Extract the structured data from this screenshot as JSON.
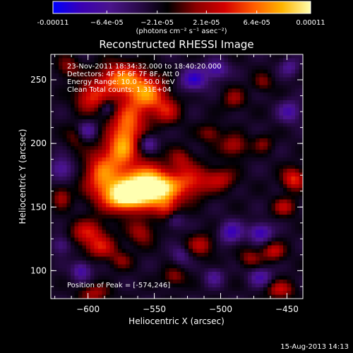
{
  "chart_data": {
    "type": "heatmap",
    "title": "Reconstructed RHESSI Image",
    "xlabel": "Heliocentric X (arcsec)",
    "ylabel": "Heliocentric Y (arcsec)",
    "xlim": [
      -628,
      -438
    ],
    "ylim": [
      78,
      270
    ],
    "x_ticks": [
      -600,
      -550,
      -500,
      -450
    ],
    "y_ticks": [
      100,
      150,
      200,
      250
    ],
    "colorbar": {
      "range": [
        -0.00011,
        0.00011
      ],
      "tick_values": [
        -0.00011,
        -6.4e-05,
        -2.1e-05,
        2.1e-05,
        6.4e-05,
        0.00011
      ],
      "tick_labels": [
        "-0.00011",
        "−6.4e-05",
        "−2.1e-05",
        "2.1e-05",
        "6.4e-05",
        "0.00011"
      ],
      "units": "(photons cm⁻² s⁻¹ asec⁻²)",
      "colormap": [
        "#0000ff",
        "#3a00b4",
        "#4a148c",
        "#2a0a4a",
        "#000000",
        "#8b0000",
        "#d40000",
        "#ff5a00",
        "#ffb400",
        "#ffffb0"
      ]
    },
    "annotations": [
      "23-Nov-2011 18:34:32.000 to 18:40:20.000",
      "Detectors: 4F 5F 6F 7F 8F, Att 0",
      "Energy Range: 10.0 - 50.0 keV",
      "Clean    Total counts: 1.31E+04"
    ],
    "peak_label": "Position of Peak = [-574,246]",
    "peak": [
      -574,
      246
    ],
    "sources": [
      {
        "x": -573,
        "y": 158,
        "sx": 10,
        "sy": 8,
        "a": 1.0
      },
      {
        "x": -560,
        "y": 168,
        "sx": 14,
        "sy": 12,
        "a": 0.9
      },
      {
        "x": -547,
        "y": 164,
        "sx": 12,
        "sy": 9,
        "a": 0.85
      },
      {
        "x": -590,
        "y": 175,
        "sx": 9,
        "sy": 14,
        "a": 0.75
      },
      {
        "x": -575,
        "y": 195,
        "sx": 8,
        "sy": 10,
        "a": 0.7
      },
      {
        "x": -570,
        "y": 215,
        "sx": 9,
        "sy": 12,
        "a": 0.75
      },
      {
        "x": -555,
        "y": 238,
        "sx": 10,
        "sy": 10,
        "a": 0.8
      },
      {
        "x": -575,
        "y": 250,
        "sx": 12,
        "sy": 9,
        "a": 0.85
      },
      {
        "x": -598,
        "y": 236,
        "sx": 8,
        "sy": 8,
        "a": 0.6
      },
      {
        "x": -540,
        "y": 225,
        "sx": 7,
        "sy": 7,
        "a": 0.45
      },
      {
        "x": -522,
        "y": 170,
        "sx": 10,
        "sy": 9,
        "a": 0.55
      },
      {
        "x": -530,
        "y": 188,
        "sx": 6,
        "sy": 6,
        "a": 0.35
      },
      {
        "x": -500,
        "y": 172,
        "sx": 8,
        "sy": 6,
        "a": 0.45
      },
      {
        "x": -490,
        "y": 198,
        "sx": 7,
        "sy": 6,
        "a": 0.45
      },
      {
        "x": -508,
        "y": 208,
        "sx": 6,
        "sy": 5,
        "a": 0.35
      },
      {
        "x": -445,
        "y": 172,
        "sx": 6,
        "sy": 6,
        "a": 0.65
      },
      {
        "x": -452,
        "y": 150,
        "sx": 6,
        "sy": 5,
        "a": 0.45
      },
      {
        "x": -460,
        "y": 115,
        "sx": 6,
        "sy": 5,
        "a": 0.5
      },
      {
        "x": -455,
        "y": 85,
        "sx": 7,
        "sy": 5,
        "a": 0.5
      },
      {
        "x": -478,
        "y": 110,
        "sx": 6,
        "sy": 5,
        "a": 0.35
      },
      {
        "x": -515,
        "y": 120,
        "sx": 7,
        "sy": 6,
        "a": 0.45
      },
      {
        "x": -535,
        "y": 95,
        "sx": 6,
        "sy": 5,
        "a": 0.35
      },
      {
        "x": -600,
        "y": 130,
        "sx": 9,
        "sy": 7,
        "a": 0.55
      },
      {
        "x": -590,
        "y": 118,
        "sx": 8,
        "sy": 6,
        "a": 0.5
      },
      {
        "x": -560,
        "y": 130,
        "sx": 7,
        "sy": 7,
        "a": 0.4
      },
      {
        "x": -575,
        "y": 108,
        "sx": 6,
        "sy": 5,
        "a": 0.3
      },
      {
        "x": -595,
        "y": 82,
        "sx": 8,
        "sy": 5,
        "a": 0.4
      },
      {
        "x": -615,
        "y": 260,
        "sx": 6,
        "sy": 6,
        "a": 0.35
      },
      {
        "x": -490,
        "y": 235,
        "sx": 6,
        "sy": 6,
        "a": 0.35
      },
      {
        "x": -468,
        "y": 248,
        "sx": 5,
        "sy": 5,
        "a": 0.3
      },
      {
        "x": -620,
        "y": 158,
        "sx": 5,
        "sy": 6,
        "a": 0.4
      },
      {
        "x": -468,
        "y": 200,
        "sx": 5,
        "sy": 5,
        "a": 0.3
      },
      {
        "x": -540,
        "y": 148,
        "sx": 6,
        "sy": 6,
        "a": 0.45
      },
      {
        "x": -610,
        "y": 205,
        "sx": 5,
        "sy": 6,
        "a": 0.25
      },
      {
        "x": -605,
        "y": 100,
        "sx": 5,
        "sy": 5,
        "a": -0.5
      },
      {
        "x": -520,
        "y": 250,
        "sx": 7,
        "sy": 6,
        "a": -0.6
      },
      {
        "x": -503,
        "y": 258,
        "sx": 6,
        "sy": 5,
        "a": -0.5
      },
      {
        "x": -492,
        "y": 130,
        "sx": 6,
        "sy": 6,
        "a": -0.55
      },
      {
        "x": -470,
        "y": 130,
        "sx": 6,
        "sy": 5,
        "a": -0.6
      },
      {
        "x": -535,
        "y": 140,
        "sx": 5,
        "sy": 5,
        "a": -0.35
      },
      {
        "x": -555,
        "y": 200,
        "sx": 5,
        "sy": 5,
        "a": -0.45
      },
      {
        "x": -620,
        "y": 180,
        "sx": 6,
        "sy": 6,
        "a": -0.45
      },
      {
        "x": -600,
        "y": 210,
        "sx": 5,
        "sy": 5,
        "a": -0.4
      },
      {
        "x": -448,
        "y": 225,
        "sx": 6,
        "sy": 6,
        "a": -0.45
      },
      {
        "x": -448,
        "y": 260,
        "sx": 5,
        "sy": 5,
        "a": -0.35
      },
      {
        "x": -470,
        "y": 95,
        "sx": 6,
        "sy": 5,
        "a": -0.45
      },
      {
        "x": -620,
        "y": 120,
        "sx": 5,
        "sy": 5,
        "a": -0.35
      },
      {
        "x": -530,
        "y": 112,
        "sx": 5,
        "sy": 5,
        "a": -0.3
      },
      {
        "x": -505,
        "y": 95,
        "sx": 5,
        "sy": 5,
        "a": -0.35
      },
      {
        "x": -585,
        "y": 228,
        "sx": 4,
        "sy": 4,
        "a": -0.3
      }
    ]
  },
  "footer": {
    "timestamp": "15-Aug-2013 14:13"
  }
}
